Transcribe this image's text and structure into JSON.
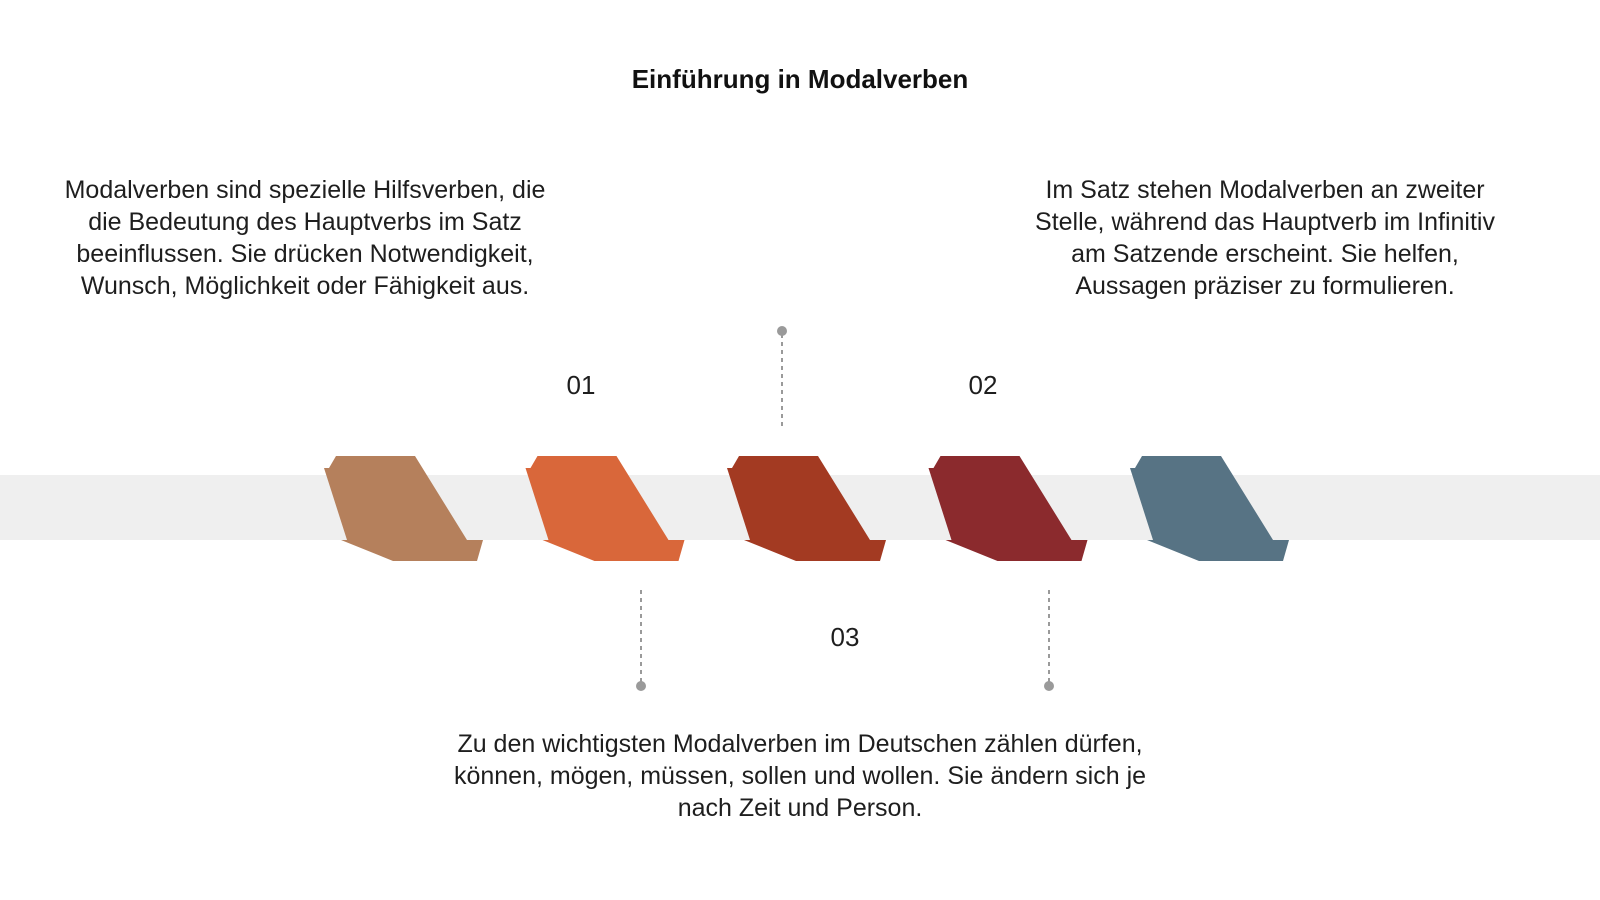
{
  "title": "Einführung in Modalverben",
  "steps": [
    {
      "number": "01",
      "text": "Modalverben sind spezielle Hilfsverben, die die Bedeutung des Hauptverbs im Satz beeinflussen. Sie drücken Notwendigkeit, Wunsch, Möglichkeit oder Fähigkeit aus."
    },
    {
      "number": "02",
      "text": "Im Satz stehen Modalverben an zweiter Stelle, während das Hauptverb im Infinitiv am Satzende erscheint. Sie helfen, Aussagen präziser zu formulieren."
    },
    {
      "number": "03",
      "text": "Zu den wichtigsten Modalverben im Deutschen zählen dürfen, können, mögen, müssen, sollen und wollen. Sie ändern sich je nach Zeit und Person."
    }
  ],
  "colors": {
    "band": "#efefef",
    "connector": "#9a9a9a",
    "chevrons": [
      "#b5805c",
      "#d9673a",
      "#a33a22",
      "#8b2a2d",
      "#577384"
    ]
  }
}
